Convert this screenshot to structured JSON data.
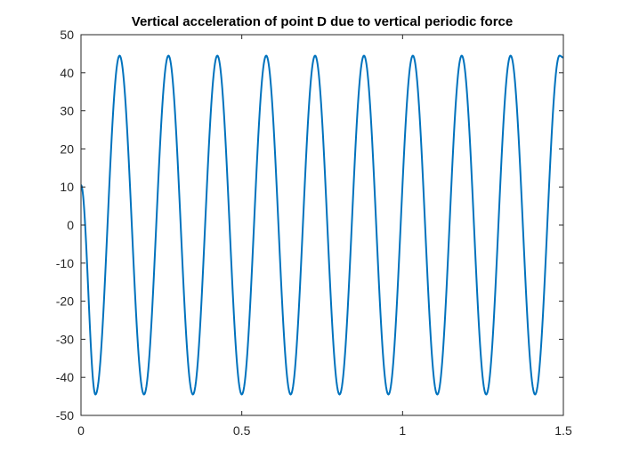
{
  "chart_data": {
    "type": "line",
    "title": "Vertical acceleration of point D due to vertical periodic force",
    "xlabel": "",
    "ylabel": "",
    "xlim": [
      0,
      1.5
    ],
    "ylim": [
      -50,
      50
    ],
    "x_ticks": [
      0,
      0.5,
      1,
      1.5
    ],
    "x_tick_labels": [
      "0",
      "0.5",
      "1",
      "1.5"
    ],
    "y_ticks": [
      -50,
      -40,
      -30,
      -20,
      -10,
      0,
      10,
      20,
      30,
      40,
      50
    ],
    "y_tick_labels": [
      "-50",
      "-40",
      "-30",
      "-20",
      "-10",
      "0",
      "10",
      "20",
      "30",
      "40",
      "50"
    ],
    "grid": false,
    "legend": "none",
    "line_color": "#0072BD",
    "series": [
      {
        "x": [
          0,
          0.045,
          0.12,
          0.196,
          0.272,
          0.348,
          0.424,
          0.5,
          0.576,
          0.652,
          0.728,
          0.804,
          0.88,
          0.956,
          1.032,
          1.108,
          1.184,
          1.26,
          1.336,
          1.412,
          1.488,
          1.5
        ],
        "values": [
          10.5,
          -44.5,
          44.5,
          -44.5,
          44.5,
          -44.5,
          44.5,
          -44.5,
          44.5,
          -44.5,
          44.5,
          -44.5,
          44.5,
          -44.5,
          44.5,
          -44.5,
          44.5,
          -44.5,
          44.5,
          -44.5,
          44.5,
          44.0
        ]
      }
    ]
  }
}
